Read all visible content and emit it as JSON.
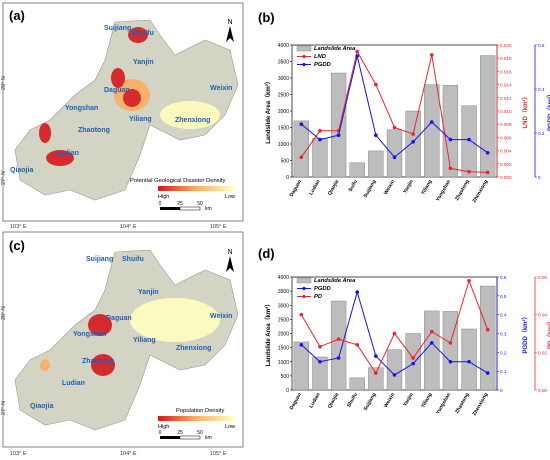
{
  "panels": {
    "a": {
      "letter": "(a)",
      "legend_title": "Potential Geological Disaster Density",
      "high": "High",
      "low": "Low"
    },
    "c": {
      "letter": "(c)",
      "legend_title": "Population Density",
      "high": "High",
      "low": "Low"
    },
    "b": {
      "letter": "(b)"
    },
    "d": {
      "letter": "(d)"
    }
  },
  "map": {
    "north": "N",
    "scale_ticks": [
      "0",
      "25",
      "50"
    ],
    "scale_unit": "km",
    "lon_labels": [
      "103° E",
      "104° E",
      "105° E"
    ],
    "lat_labels": [
      "28° N",
      "27° N"
    ],
    "places_a": [
      "Suijiang",
      "Shuifu",
      "Yanjin",
      "Daguan",
      "Weixin",
      "Yongshan",
      "Yiliang",
      "Zhaotong",
      "Zhenxiong",
      "Ludian",
      "Qiaojia"
    ],
    "places_c": [
      "Suijiang",
      "Shuifu",
      "Yanjin",
      "Daguan",
      "Weixin",
      "Yongshan",
      "Yiliang",
      "Zhaotong",
      "Zhenxiong",
      "Ludian",
      "Qiaojia"
    ],
    "colors": {
      "high": "#d7191c",
      "mid": "#fdae61",
      "low": "#ffffbf",
      "terrain": "#c8c8c8",
      "label": "#1f5fb4"
    }
  },
  "chart_data": [
    {
      "panel": "(b)",
      "type": "bar",
      "categories": [
        "Daguan",
        "Ludian",
        "Qiaojia",
        "Suifu",
        "Suijiang",
        "Weixin",
        "Yanjin",
        "Yiliang",
        "Yongshan",
        "Zhaotong",
        "Zhenxiong"
      ],
      "ylabel_left": "Landslide Area（km²）",
      "ylabel_right1": "LND（km²）",
      "ylabel_right2": "PGDD（km²）",
      "ylim_left": [
        0,
        4000
      ],
      "ylim_right1": [
        0,
        0.02
      ],
      "ylim_right2": [
        0,
        0.6
      ],
      "yticks_left": [
        "0",
        "500",
        "1000",
        "1500",
        "2000",
        "2500",
        "3000",
        "3500",
        "4000"
      ],
      "yticks_right1": [
        "0.000",
        "0.002",
        "0.004",
        "0.006",
        "0.008",
        "0.010",
        "0.012",
        "0.014",
        "0.016",
        "0.018",
        "0.020"
      ],
      "yticks_right2": [
        "0",
        "0.2",
        "0.4",
        "0.6"
      ],
      "series": [
        {
          "name": "Landslide Area",
          "type": "bar",
          "axis": "left",
          "color": "#bdbdbd",
          "values": [
            1700,
            1170,
            3150,
            430,
            790,
            1430,
            2000,
            2800,
            2780,
            2160,
            3680
          ]
        },
        {
          "name": "LND",
          "type": "line",
          "axis": "right1",
          "color": "#e8262d",
          "values": [
            0.003,
            0.007,
            0.007,
            0.019,
            0.014,
            0.0075,
            0.0065,
            0.0185,
            0.0013,
            0.0008,
            0.0007
          ]
        },
        {
          "name": "PGDD",
          "type": "line",
          "axis": "right2",
          "color": "#1414e6",
          "values": [
            0.24,
            0.17,
            0.19,
            0.55,
            0.19,
            0.09,
            0.16,
            0.25,
            0.17,
            0.17,
            0.11
          ]
        }
      ]
    },
    {
      "panel": "(d)",
      "type": "bar",
      "categories": [
        "Daguan",
        "Ludian",
        "Qiaojia",
        "Shuifu",
        "Suijiang",
        "Weixin",
        "Yanjin",
        "Yiliang",
        "Yongshan",
        "Zhaotong",
        "Zhenxiong"
      ],
      "ylabel_left": "Landslide Area（km²）",
      "ylabel_right1": "PGDD（km²）",
      "ylabel_right2": "PD（km²）",
      "ylim_left": [
        0,
        4000
      ],
      "ylim_right1": [
        0,
        0.6
      ],
      "ylim_right2": [
        0,
        0.06
      ],
      "yticks_left": [
        "0",
        "500",
        "1000",
        "1500",
        "2000",
        "2500",
        "3000",
        "3500",
        "4000"
      ],
      "yticks_right1": [
        "0",
        "0.1",
        "0.2",
        "0.3",
        "0.4",
        "0.5",
        "0.6"
      ],
      "yticks_right2": [
        "0.00",
        "0.02",
        "0.04",
        "0.06"
      ],
      "series": [
        {
          "name": "Landslide Area",
          "type": "bar",
          "axis": "left",
          "color": "#bdbdbd",
          "values": [
            1700,
            1170,
            3150,
            430,
            790,
            1430,
            2000,
            2800,
            2780,
            2160,
            3680
          ]
        },
        {
          "name": "PGDD",
          "type": "line",
          "axis": "right1",
          "color": "#1414e6",
          "values": [
            0.24,
            0.15,
            0.17,
            0.52,
            0.18,
            0.08,
            0.14,
            0.25,
            0.15,
            0.15,
            0.09
          ]
        },
        {
          "name": "PD",
          "type": "line",
          "axis": "right2",
          "color": "#e8262d",
          "values": [
            0.04,
            0.023,
            0.027,
            0.024,
            0.009,
            0.03,
            0.017,
            0.031,
            0.025,
            0.058,
            0.032
          ]
        }
      ]
    }
  ]
}
